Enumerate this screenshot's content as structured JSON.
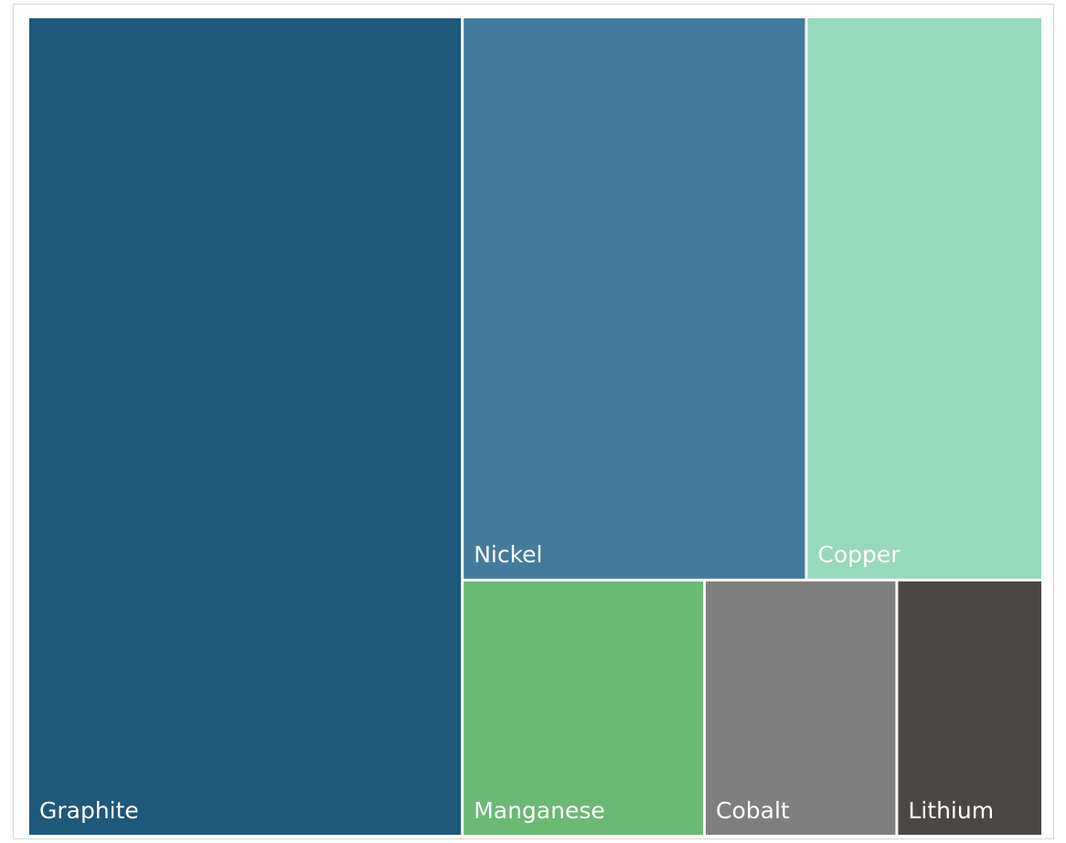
{
  "chart_data": {
    "type": "treemap",
    "title": "",
    "legend": "none",
    "items": [
      {
        "name": "Graphite",
        "value": 41.5,
        "color": "#1E587B"
      },
      {
        "name": "Nickel",
        "value": 22.7,
        "color": "#447B9D"
      },
      {
        "name": "Copper",
        "value": 15.6,
        "color": "#97D9BC"
      },
      {
        "name": "Manganese",
        "value": 7.3,
        "color": "#6BB974"
      },
      {
        "name": "Cobalt",
        "value": 5.8,
        "color": "#7F7F7F"
      },
      {
        "name": "Lithium",
        "value": 4.4,
        "color": "#4A4745"
      }
    ]
  }
}
